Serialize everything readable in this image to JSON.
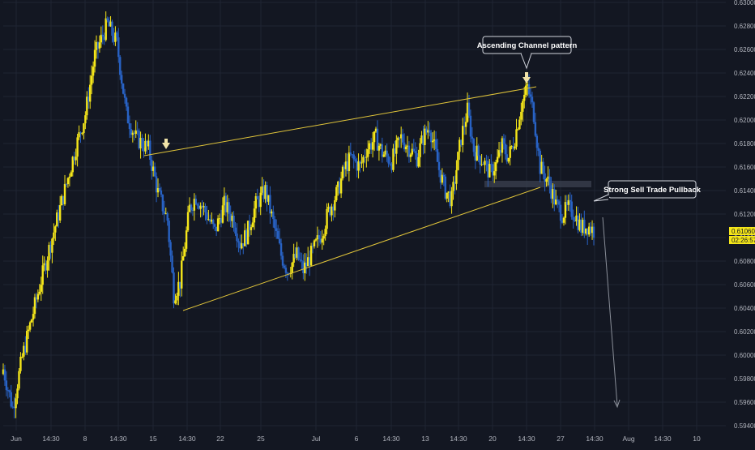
{
  "colors": {
    "background": "#131722",
    "grid": "#1f2433",
    "up": "#f5e61a",
    "down": "#2862c4",
    "trendline": "#e1c53a",
    "axis_text": "#b2b5be",
    "arrow": "#f0e3a8",
    "zone": "#3c4150",
    "projection": "#8a8f99"
  },
  "annotations": {
    "channel_label": "Ascending Channel pattern",
    "pullback_label": "Strong Sell Trade Pullback"
  },
  "price_scale": {
    "current_price": "0.61060",
    "countdown": "02:26:57"
  },
  "chart_data": {
    "type": "candlestick",
    "symbol_bars": "4H",
    "ylim": [
      0.5935,
      0.6305
    ],
    "yticks": [
      "0.63000",
      "0.62800",
      "0.62600",
      "0.62400",
      "0.62200",
      "0.62000",
      "0.61800",
      "0.61600",
      "0.61400",
      "0.61200",
      "0.61000",
      "0.60800",
      "0.60600",
      "0.60400",
      "0.60200",
      "0.60000",
      "0.59800",
      "0.59600",
      "0.59400"
    ],
    "xticks": [
      "Jun",
      "14:30",
      "8",
      "14:30",
      "15",
      "14:30",
      "22",
      "25",
      "Jul",
      "6",
      "14:30",
      "13",
      "14:30",
      "20",
      "14:30",
      "27",
      "14:30",
      "Aug",
      "14:30",
      "10"
    ],
    "series": [
      {
        "close_path": [
          [
            0,
            0.5988
          ],
          [
            6,
            0.5955
          ],
          [
            12,
            0.5998
          ],
          [
            20,
            0.6042
          ],
          [
            28,
            0.6085
          ],
          [
            38,
            0.6135
          ],
          [
            45,
            0.6172
          ],
          [
            52,
            0.6205
          ],
          [
            58,
            0.6255
          ],
          [
            66,
            0.6282
          ],
          [
            72,
            0.6265
          ],
          [
            78,
            0.6205
          ],
          [
            84,
            0.6185
          ],
          [
            92,
            0.6175
          ],
          [
            98,
            0.6138
          ],
          [
            104,
            0.6115
          ],
          [
            108,
            0.6052
          ],
          [
            112,
            0.6062
          ],
          [
            118,
            0.6125
          ],
          [
            122,
            0.6135
          ],
          [
            128,
            0.6122
          ],
          [
            134,
            0.6105
          ],
          [
            140,
            0.6128
          ],
          [
            146,
            0.6115
          ],
          [
            150,
            0.6095
          ],
          [
            154,
            0.6102
          ],
          [
            160,
            0.6128
          ],
          [
            166,
            0.614
          ],
          [
            170,
            0.6118
          ],
          [
            176,
            0.6085
          ],
          [
            180,
            0.6072
          ],
          [
            186,
            0.6085
          ],
          [
            190,
            0.6072
          ],
          [
            196,
            0.6088
          ],
          [
            202,
            0.6105
          ],
          [
            206,
            0.6122
          ],
          [
            212,
            0.614
          ],
          [
            216,
            0.6158
          ],
          [
            220,
            0.6168
          ],
          [
            226,
            0.616
          ],
          [
            230,
            0.6175
          ],
          [
            236,
            0.6185
          ],
          [
            240,
            0.6172
          ],
          [
            246,
            0.6165
          ],
          [
            252,
            0.6185
          ],
          [
            256,
            0.6178
          ],
          [
            262,
            0.6168
          ],
          [
            266,
            0.6185
          ],
          [
            270,
            0.6195
          ],
          [
            276,
            0.6158
          ],
          [
            280,
            0.614
          ],
          [
            284,
            0.6132
          ],
          [
            290,
            0.6185
          ],
          [
            294,
            0.6208
          ],
          [
            298,
            0.6175
          ],
          [
            304,
            0.6165
          ],
          [
            308,
            0.6155
          ],
          [
            312,
            0.6162
          ],
          [
            316,
            0.6178
          ],
          [
            320,
            0.6168
          ],
          [
            324,
            0.6185
          ],
          [
            328,
            0.6212
          ],
          [
            332,
            0.6228
          ],
          [
            336,
            0.6205
          ],
          [
            340,
            0.616
          ],
          [
            346,
            0.6145
          ],
          [
            350,
            0.6128
          ],
          [
            354,
            0.612
          ],
          [
            358,
            0.6125
          ],
          [
            362,
            0.612
          ],
          [
            366,
            0.6108
          ],
          [
            370,
            0.611
          ],
          [
            374,
            0.6106
          ]
        ]
      }
    ]
  }
}
